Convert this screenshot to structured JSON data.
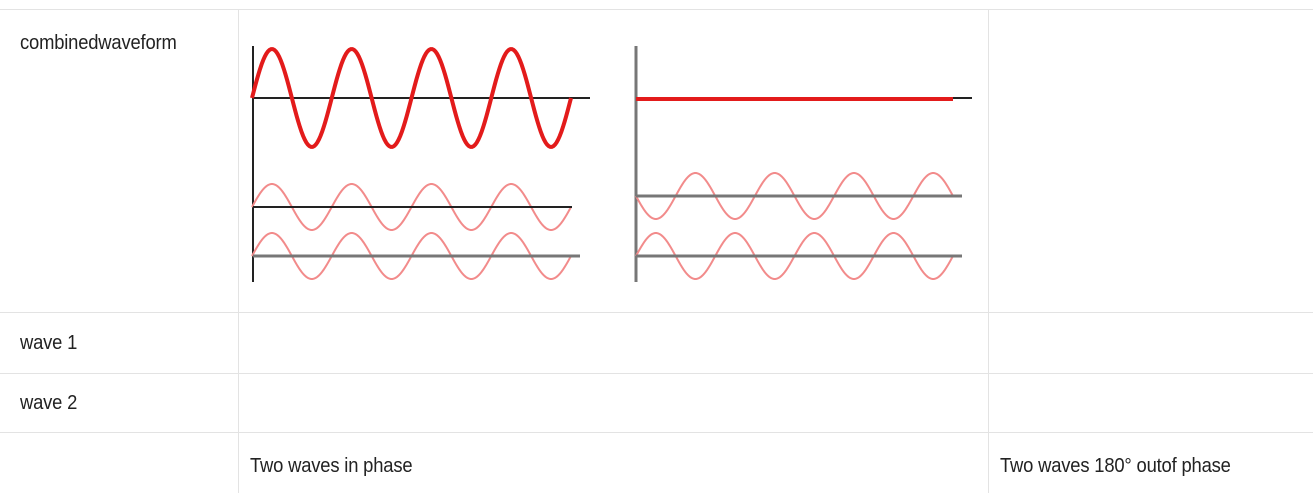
{
  "table": {
    "row_labels": {
      "combined": "combinedwaveform",
      "wave1": "wave 1",
      "wave2": "wave 2"
    },
    "captions": {
      "in_phase": "Two waves in phase",
      "out_of_phase": "Two waves 180° outof phase"
    }
  },
  "colors": {
    "wave": "#e31b1b",
    "light_wave": "#f28b8b",
    "axis": "#222222",
    "baseline": "#777777",
    "grid": "#e3e3e3"
  }
}
